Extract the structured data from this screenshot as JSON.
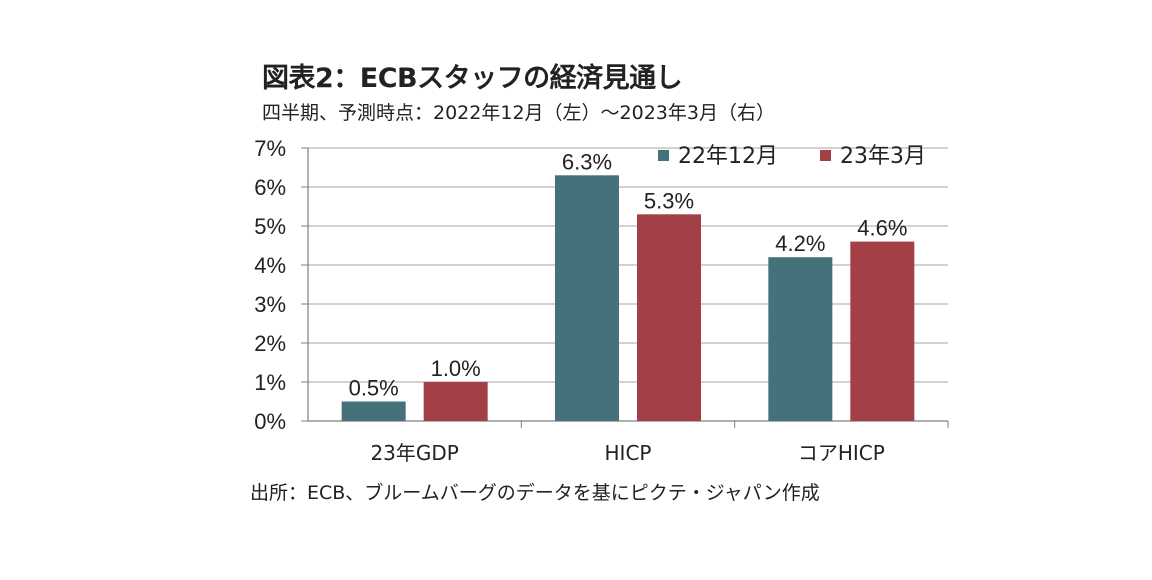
{
  "chart_data": {
    "type": "bar",
    "title": "図表2：ECBスタッフの経済見通し",
    "subtitle": "四半期、予測時点：2022年12月（左）～2023年3月（右）",
    "source": "出所：ECB、ブルームバーグのデータを基にピクテ・ジャパン作成",
    "categories": [
      "23年GDP",
      "HICP",
      "コアHICP"
    ],
    "series": [
      {
        "name": "22年12月",
        "values": [
          0.5,
          6.3,
          4.2
        ],
        "labels": [
          "0.5%",
          "6.3%",
          "4.2%"
        ],
        "color": "#44717a"
      },
      {
        "name": "23年3月",
        "values": [
          1.0,
          5.3,
          4.6
        ],
        "labels": [
          "1.0%",
          "5.3%",
          "4.6%"
        ],
        "color": "#a23f47"
      }
    ],
    "ylim": [
      0,
      7
    ],
    "yticks": [
      "0%",
      "1%",
      "2%",
      "3%",
      "4%",
      "5%",
      "6%",
      "7%"
    ],
    "grid": true,
    "legend_position": "top-right",
    "xlabel": "",
    "ylabel": ""
  }
}
